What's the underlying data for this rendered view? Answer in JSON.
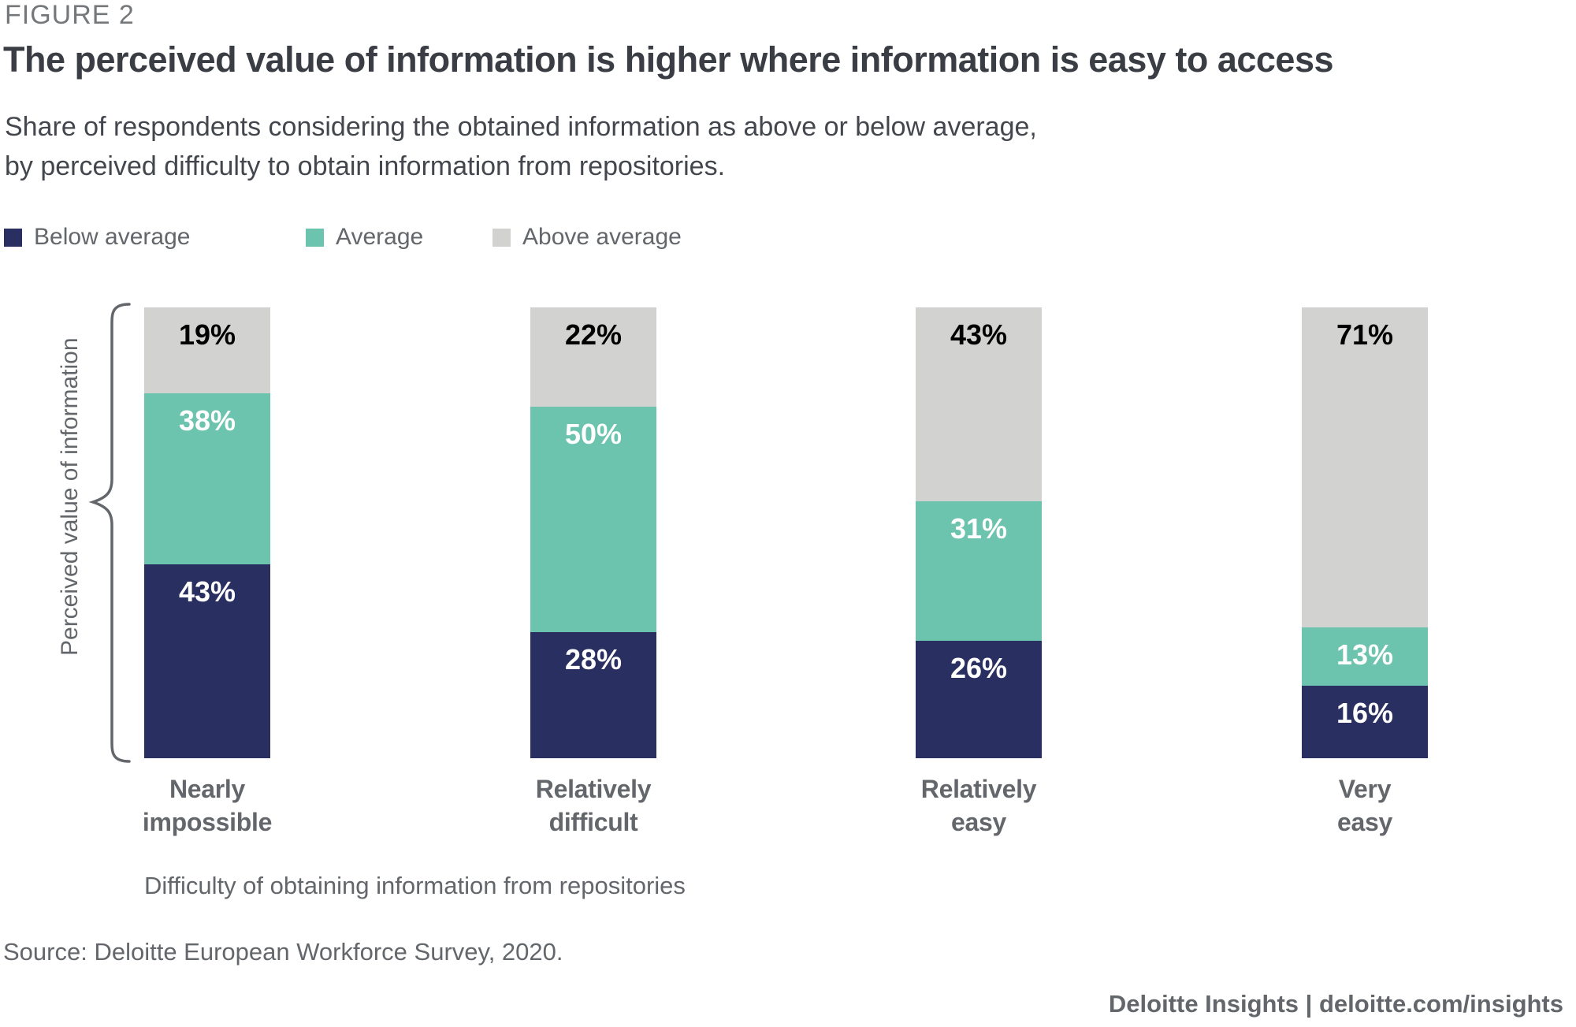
{
  "figure_label": "FIGURE 2",
  "title": "The perceived value of information is higher where information is easy to access",
  "subtitle": {
    "line1": "Share of respondents considering the obtained information as above or below average,",
    "line2": "by perceived difficulty to obtain information from repositories."
  },
  "legend": {
    "items": [
      {
        "label": "Below average",
        "color": "#2A2F62"
      },
      {
        "label": "Average",
        "color": "#6CC3AE"
      },
      {
        "label": "Above average",
        "color": "#D2D2D0"
      }
    ]
  },
  "axes": {
    "y_label": "Perceived value of information",
    "x_label": "Difficulty of obtaining information from repositories"
  },
  "source": "Source: Deloitte European Workforce Survey, 2020.",
  "footer": {
    "brand": "Deloitte Insights",
    "separator": "|",
    "url": "deloitte.com/insights"
  },
  "chart_data": {
    "type": "bar",
    "stacked": true,
    "orientation": "vertical",
    "unit": "%",
    "ylim": [
      0,
      100
    ],
    "grid": false,
    "legend_position": "top-left",
    "categories": [
      "Nearly\nimpossible",
      "Relatively\ndifficult",
      "Relatively\neasy",
      "Very\neasy"
    ],
    "series": [
      {
        "name": "Below average",
        "values": [
          43,
          28,
          26,
          16
        ],
        "color": "#2A2F62",
        "label_color": "#FFFFFF"
      },
      {
        "name": "Average",
        "values": [
          38,
          50,
          31,
          13
        ],
        "color": "#6CC3AE",
        "label_color": "#FFFFFF"
      },
      {
        "name": "Above average",
        "values": [
          19,
          22,
          43,
          71
        ],
        "color": "#D2D2D0",
        "label_color": "#000000"
      }
    ],
    "draw_order_top_to_bottom": [
      "Above average",
      "Average",
      "Below average"
    ]
  }
}
